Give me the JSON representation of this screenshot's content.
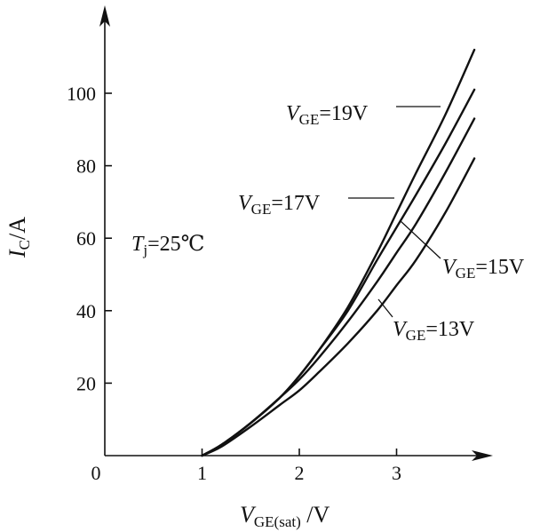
{
  "chart_data": {
    "type": "line",
    "x_axis": {
      "label_main": "V",
      "label_sub": "GE(sat)",
      "label_unit": "/V",
      "range": [
        0,
        3.8
      ],
      "ticks": [
        0,
        1,
        2,
        3
      ]
    },
    "y_axis": {
      "label_main": "I",
      "label_sub": "C",
      "label_unit": "/A",
      "range": [
        0,
        112
      ],
      "ticks": [
        20,
        40,
        60,
        80,
        100
      ]
    },
    "grid": false,
    "annotation": {
      "main": "T",
      "sub": "j",
      "rest": "=25℃"
    },
    "series": [
      {
        "name_main": "V",
        "name_sub": "GE",
        "name_value": "=19V",
        "x": [
          1.0,
          1.2,
          1.5,
          1.8,
          2.0,
          2.2,
          2.5,
          2.8,
          3.0,
          3.2,
          3.5,
          3.8
        ],
        "y": [
          0,
          3,
          9,
          16,
          22,
          29,
          41,
          56,
          67,
          78,
          94,
          112
        ]
      },
      {
        "name_main": "V",
        "name_sub": "GE",
        "name_value": "=17V",
        "x": [
          1.0,
          1.2,
          1.5,
          1.8,
          2.0,
          2.2,
          2.5,
          2.8,
          3.0,
          3.2,
          3.5,
          3.8
        ],
        "y": [
          0,
          3,
          9,
          16,
          22,
          29,
          40,
          54,
          63,
          72,
          86,
          101
        ]
      },
      {
        "name_main": "V",
        "name_sub": "GE",
        "name_value": "=15V",
        "x": [
          1.0,
          1.2,
          1.5,
          1.8,
          2.0,
          2.2,
          2.5,
          2.8,
          3.0,
          3.2,
          3.5,
          3.8
        ],
        "y": [
          0,
          3,
          9,
          16,
          21,
          27,
          37,
          48,
          56,
          64,
          78,
          93
        ]
      },
      {
        "name_main": "V",
        "name_sub": "GE",
        "name_value": "=13V",
        "x": [
          1.0,
          1.2,
          1.5,
          1.8,
          2.0,
          2.2,
          2.5,
          2.8,
          3.0,
          3.2,
          3.5,
          3.8
        ],
        "y": [
          0,
          2.5,
          8,
          14,
          18,
          23,
          31,
          40,
          47,
          54,
          67,
          82
        ]
      }
    ]
  }
}
